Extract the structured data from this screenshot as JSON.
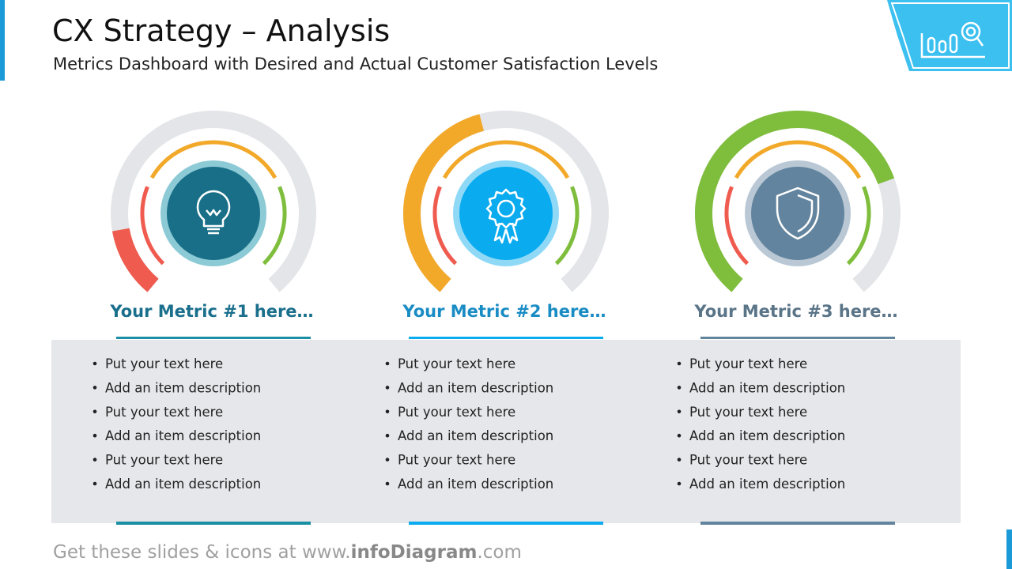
{
  "header": {
    "title": "CX Strategy – Analysis",
    "subtitle": "Metrics Dashboard with Desired and Actual Customer Satisfaction Levels"
  },
  "metrics": [
    {
      "title": "Your Metric #1 here…",
      "items": [
        "Put your text here",
        "Add an item description",
        "Put your text here",
        "Add an item description",
        "Put your text here",
        "Add an item description"
      ]
    },
    {
      "title": "Your Metric #2 here…",
      "items": [
        "Put your text here",
        "Add an item description",
        "Put your text here",
        "Add an item description",
        "Put your text here",
        "Add an item description"
      ]
    },
    {
      "title": "Your Metric #3 here…",
      "items": [
        "Put your text here",
        "Add an item description",
        "Put your text here",
        "Add an item description",
        "Put your text here",
        "Add an item description"
      ]
    }
  ],
  "footer": {
    "prefix": "Get these slides & icons at www.",
    "brand": "infoDiagram",
    "suffix": ".com"
  }
}
